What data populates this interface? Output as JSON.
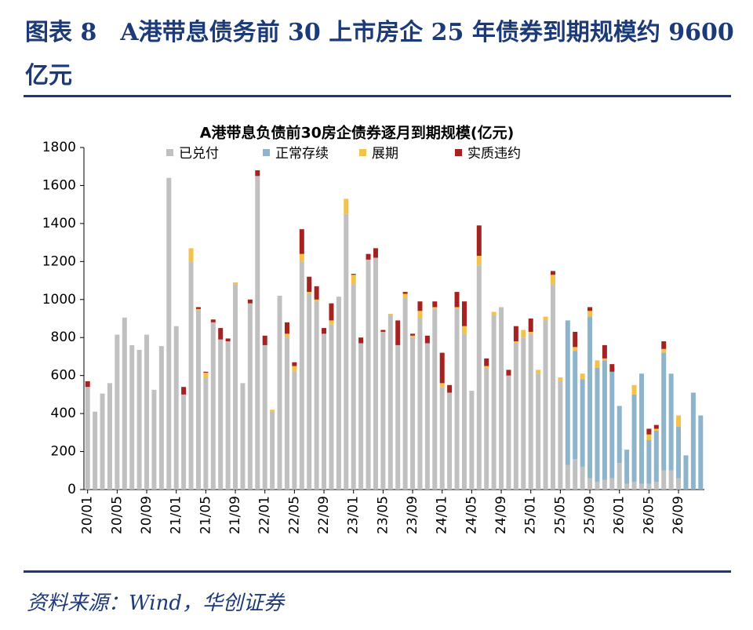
{
  "figure_title": "图表 8　A港带息债务前 30 上市房企 25 年债券到期规模约 9600 亿元",
  "source": "资料来源：Wind，华创证券",
  "chart_data": {
    "type": "stacked_bar",
    "title": "A港带息负债前30房企债券逐月到期规模(亿元)",
    "categories": [
      "20/01",
      null,
      null,
      null,
      "20/05",
      null,
      null,
      null,
      "20/09",
      null,
      null,
      null,
      "21/01",
      null,
      null,
      null,
      "21/05",
      null,
      null,
      null,
      "21/09",
      null,
      null,
      null,
      "22/01",
      null,
      null,
      null,
      "22/05",
      null,
      null,
      null,
      "22/09",
      null,
      null,
      null,
      "23/01",
      null,
      null,
      null,
      "23/05",
      null,
      null,
      null,
      "23/09",
      null,
      null,
      null,
      "24/01",
      null,
      null,
      null,
      "24/05",
      null,
      null,
      null,
      "24/09",
      null,
      null,
      null,
      "25/01",
      null,
      null,
      null,
      "25/05",
      null,
      null,
      null,
      "25/09",
      null,
      null,
      null,
      "26/01",
      null,
      null,
      null,
      "26/05",
      null,
      null,
      null,
      "26/09",
      null,
      null,
      null
    ],
    "series": [
      {
        "name": "已兑付",
        "color": "#c0c0c0",
        "values": [
          540,
          410,
          505,
          560,
          815,
          905,
          760,
          735,
          815,
          525,
          755,
          1640,
          860,
          500,
          1200,
          945,
          590,
          880,
          790,
          780,
          1080,
          560,
          980,
          1650,
          760,
          410,
          1020,
          800,
          620,
          1200,
          1030,
          990,
          820,
          870,
          1015,
          1450,
          1080,
          770,
          1210,
          1220,
          830,
          920,
          760,
          1010,
          800,
          900,
          770,
          950,
          540,
          510,
          950,
          820,
          520,
          1180,
          640,
          920,
          960,
          600,
          770,
          800,
          820,
          610,
          890,
          1080,
          570,
          130,
          160,
          120,
          60,
          40,
          50,
          60,
          140,
          30,
          40,
          30,
          30,
          40,
          100,
          100,
          60,
          0,
          0,
          0
        ]
      },
      {
        "name": "正常存续",
        "color": "#8db4ca",
        "values": [
          0,
          0,
          0,
          0,
          0,
          0,
          0,
          0,
          0,
          0,
          0,
          0,
          0,
          0,
          0,
          0,
          0,
          0,
          0,
          0,
          0,
          0,
          0,
          0,
          0,
          0,
          0,
          0,
          0,
          0,
          0,
          0,
          0,
          0,
          0,
          0,
          0,
          0,
          0,
          0,
          0,
          0,
          0,
          0,
          0,
          0,
          0,
          0,
          0,
          0,
          0,
          0,
          0,
          0,
          0,
          0,
          0,
          0,
          0,
          0,
          0,
          0,
          0,
          0,
          0,
          760,
          570,
          460,
          850,
          600,
          630,
          560,
          300,
          180,
          460,
          580,
          230,
          270,
          620,
          510,
          270,
          180,
          510,
          390
        ]
      },
      {
        "name": "展期",
        "color": "#f2c24a",
        "values": [
          0,
          0,
          0,
          0,
          0,
          0,
          0,
          0,
          0,
          0,
          0,
          0,
          0,
          0,
          70,
          5,
          25,
          0,
          0,
          0,
          10,
          0,
          0,
          0,
          0,
          10,
          0,
          20,
          30,
          40,
          10,
          10,
          0,
          20,
          0,
          80,
          50,
          0,
          0,
          0,
          0,
          5,
          0,
          20,
          10,
          40,
          0,
          10,
          20,
          0,
          10,
          40,
          0,
          50,
          10,
          15,
          0,
          0,
          10,
          40,
          10,
          20,
          20,
          50,
          20,
          0,
          20,
          30,
          30,
          40,
          10,
          0,
          0,
          0,
          50,
          0,
          30,
          10,
          20,
          0,
          60,
          0,
          0,
          0
        ]
      },
      {
        "name": "实质违约",
        "color": "#a4221f",
        "values": [
          30,
          0,
          0,
          0,
          0,
          0,
          0,
          0,
          0,
          0,
          0,
          0,
          0,
          40,
          0,
          10,
          5,
          15,
          60,
          15,
          0,
          0,
          20,
          30,
          50,
          0,
          0,
          60,
          20,
          130,
          80,
          70,
          30,
          90,
          0,
          0,
          5,
          30,
          30,
          50,
          10,
          0,
          130,
          10,
          10,
          50,
          40,
          30,
          160,
          40,
          80,
          130,
          0,
          160,
          40,
          0,
          0,
          30,
          80,
          0,
          70,
          0,
          0,
          20,
          0,
          0,
          80,
          0,
          20,
          0,
          70,
          40,
          0,
          0,
          0,
          0,
          30,
          20,
          40,
          0,
          0,
          0,
          0,
          0
        ]
      }
    ],
    "ylim": [
      0,
      1800
    ],
    "yticks": [
      0,
      200,
      400,
      600,
      800,
      1000,
      1200,
      1400,
      1600,
      1800
    ]
  }
}
